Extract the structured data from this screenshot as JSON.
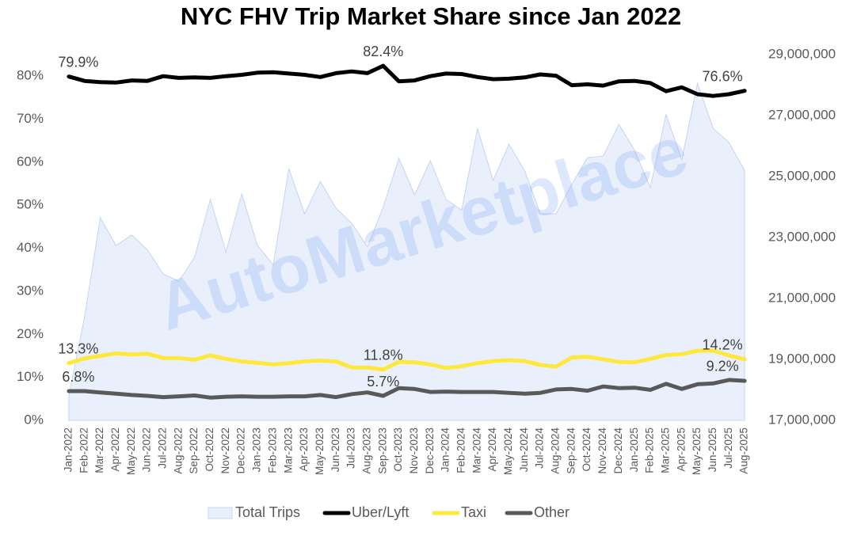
{
  "chart_data": {
    "type": "line",
    "title": "NYC FHV Trip Market Share since Jan 2022",
    "watermark": "AutoMarketplace",
    "categories": [
      "Jan-2022",
      "Feb-2022",
      "Mar-2022",
      "Apr-2022",
      "May-2022",
      "Jun-2022",
      "Jul-2022",
      "Aug-2022",
      "Sep-2022",
      "Oct-2022",
      "Nov-2022",
      "Dec-2022",
      "Jan-2023",
      "Feb-2023",
      "Mar-2023",
      "Apr-2023",
      "May-2023",
      "Jun-2023",
      "Jul-2023",
      "Aug-2023",
      "Sep-2023",
      "Oct-2023",
      "Nov-2023",
      "Dec-2023",
      "Jan-2024",
      "Feb-2024",
      "Mar-2024",
      "Apr-2024",
      "May-2024",
      "Jun-2024",
      "Jul-2024",
      "Aug-2024",
      "Sep-2024",
      "Oct-2024",
      "Nov-2024",
      "Dec-2024",
      "Jan-2025",
      "Feb-2025",
      "Mar-2025",
      "Apr-2025",
      "May-2025",
      "Jun-2025",
      "Jul-2025",
      "Aug-2025"
    ],
    "series": [
      {
        "name": "Total Trips",
        "type": "area",
        "axis": "y2",
        "color": "#e9f0fc",
        "stroke": "#c5d4f1",
        "values": [
          17800000,
          20400000,
          23650000,
          22740000,
          23080000,
          22600000,
          21800000,
          21570000,
          22350000,
          24250000,
          22530000,
          24430000,
          22740000,
          22100000,
          25260000,
          23780000,
          24840000,
          23960000,
          23470000,
          22690000,
          23990000,
          25600000,
          24400000,
          25520000,
          24250000,
          23900000,
          26580000,
          24870000,
          26060000,
          25200000,
          23780000,
          23780000,
          24740000,
          25620000,
          25670000,
          26710000,
          25860000,
          24640000,
          27030000,
          25550000,
          28060000,
          26580000,
          26120000,
          25200000
        ]
      },
      {
        "name": "Uber/Lyft",
        "color": "#000000",
        "values": [
          79.9,
          78.9,
          78.6,
          78.5,
          79.0,
          78.9,
          80.0,
          79.6,
          79.7,
          79.6,
          80.0,
          80.3,
          80.8,
          80.9,
          80.6,
          80.3,
          79.8,
          80.7,
          81.1,
          80.7,
          82.4,
          78.8,
          79.0,
          80.0,
          80.6,
          80.5,
          79.8,
          79.3,
          79.4,
          79.7,
          80.4,
          80.1,
          77.9,
          78.1,
          77.8,
          78.8,
          78.9,
          78.4,
          76.5,
          77.4,
          75.8,
          75.4,
          75.8,
          76.6
        ],
        "value_labels": [
          "79.9%",
          null,
          null,
          null,
          null,
          null,
          null,
          null,
          null,
          null,
          null,
          null,
          null,
          null,
          null,
          null,
          null,
          null,
          null,
          null,
          "82.4%",
          null,
          null,
          null,
          null,
          null,
          null,
          null,
          null,
          null,
          null,
          null,
          null,
          null,
          null,
          null,
          null,
          null,
          null,
          null,
          null,
          null,
          null,
          "76.6%"
        ]
      },
      {
        "name": "Taxi",
        "color": "#ffe83d",
        "values": [
          13.3,
          14.4,
          15.0,
          15.6,
          15.3,
          15.5,
          14.5,
          14.5,
          14.1,
          15.1,
          14.3,
          13.7,
          13.4,
          13.0,
          13.3,
          13.7,
          13.9,
          13.7,
          12.3,
          12.3,
          11.8,
          13.6,
          13.5,
          13.0,
          12.2,
          12.6,
          13.3,
          13.8,
          14.0,
          13.8,
          12.9,
          12.5,
          14.6,
          14.8,
          14.2,
          13.6,
          13.5,
          14.3,
          15.2,
          15.4,
          16.2,
          16.2,
          15.1,
          14.2
        ],
        "value_labels": [
          "13.3%",
          null,
          null,
          null,
          null,
          null,
          null,
          null,
          null,
          null,
          null,
          null,
          null,
          null,
          null,
          null,
          null,
          null,
          null,
          null,
          "11.8%",
          null,
          null,
          null,
          null,
          null,
          null,
          null,
          null,
          null,
          null,
          null,
          null,
          null,
          null,
          null,
          null,
          null,
          null,
          null,
          null,
          null,
          null,
          "14.2%"
        ]
      },
      {
        "name": "Other",
        "color": "#595959",
        "values": [
          6.8,
          6.8,
          6.5,
          6.2,
          5.9,
          5.7,
          5.4,
          5.6,
          5.8,
          5.3,
          5.5,
          5.6,
          5.5,
          5.5,
          5.6,
          5.6,
          5.9,
          5.4,
          6.1,
          6.5,
          5.7,
          7.5,
          7.3,
          6.6,
          6.7,
          6.6,
          6.6,
          6.6,
          6.4,
          6.2,
          6.4,
          7.2,
          7.3,
          6.9,
          7.9,
          7.5,
          7.6,
          7.1,
          8.5,
          7.3,
          8.4,
          8.6,
          9.4,
          9.2
        ],
        "value_labels": [
          "6.8%",
          null,
          null,
          null,
          null,
          null,
          null,
          null,
          null,
          null,
          null,
          null,
          null,
          null,
          null,
          null,
          null,
          null,
          null,
          null,
          "5.7%",
          null,
          null,
          null,
          null,
          null,
          null,
          null,
          null,
          null,
          null,
          null,
          null,
          null,
          null,
          null,
          null,
          null,
          null,
          null,
          null,
          null,
          null,
          "9.2%"
        ]
      }
    ],
    "ylim": [
      0,
      85
    ],
    "yticks": [
      {
        "value": 0,
        "label": "0%"
      },
      {
        "value": 10,
        "label": "10%"
      },
      {
        "value": 20,
        "label": "20%"
      },
      {
        "value": 30,
        "label": "30%"
      },
      {
        "value": 40,
        "label": "40%"
      },
      {
        "value": 50,
        "label": "50%"
      },
      {
        "value": 60,
        "label": "60%"
      },
      {
        "value": 70,
        "label": "70%"
      },
      {
        "value": 80,
        "label": "80%"
      }
    ],
    "y2lim": [
      17000000,
      29000000
    ],
    "y2ticks": [
      {
        "value": 17000000,
        "label": "17,000,000"
      },
      {
        "value": 19000000,
        "label": "19,000,000"
      },
      {
        "value": 21000000,
        "label": "21,000,000"
      },
      {
        "value": 23000000,
        "label": "23,000,000"
      },
      {
        "value": 25000000,
        "label": "25,000,000"
      },
      {
        "value": 27000000,
        "label": "27,000,000"
      },
      {
        "value": 29000000,
        "label": "29,000,000"
      }
    ],
    "grid": false,
    "legend": "bottom"
  }
}
